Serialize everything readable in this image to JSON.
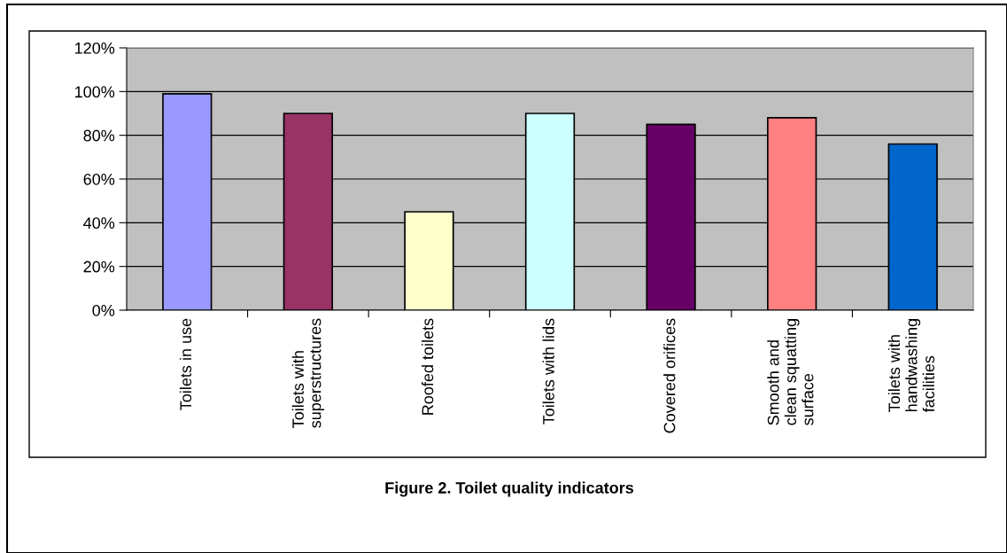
{
  "chart_data": {
    "type": "bar",
    "title": "Figure 2. Toilet quality indicators",
    "categories": [
      "Toilets in use",
      "Toilets with\nsuperstructures",
      "Roofed toilets",
      "Toilets with lids",
      "Covered orifices",
      "Smooth and\nclean squatting\nsurface",
      "Toilets with\nhandwashing\nfacilities"
    ],
    "values": [
      99,
      90,
      45,
      90,
      85,
      88,
      76
    ],
    "colors": [
      "#9999ff",
      "#993366",
      "#ffffcc",
      "#ccffff",
      "#660066",
      "#ff8080",
      "#0066cc"
    ],
    "ylim": [
      0,
      120
    ],
    "yticks": [
      {
        "value": 0,
        "label": "0%"
      },
      {
        "value": 20,
        "label": "20%"
      },
      {
        "value": 40,
        "label": "40%"
      },
      {
        "value": 60,
        "label": "60%"
      },
      {
        "value": 80,
        "label": "80%"
      },
      {
        "value": 100,
        "label": "100%"
      },
      {
        "value": 120,
        "label": "120%"
      }
    ],
    "grid": "y",
    "legend": false
  }
}
